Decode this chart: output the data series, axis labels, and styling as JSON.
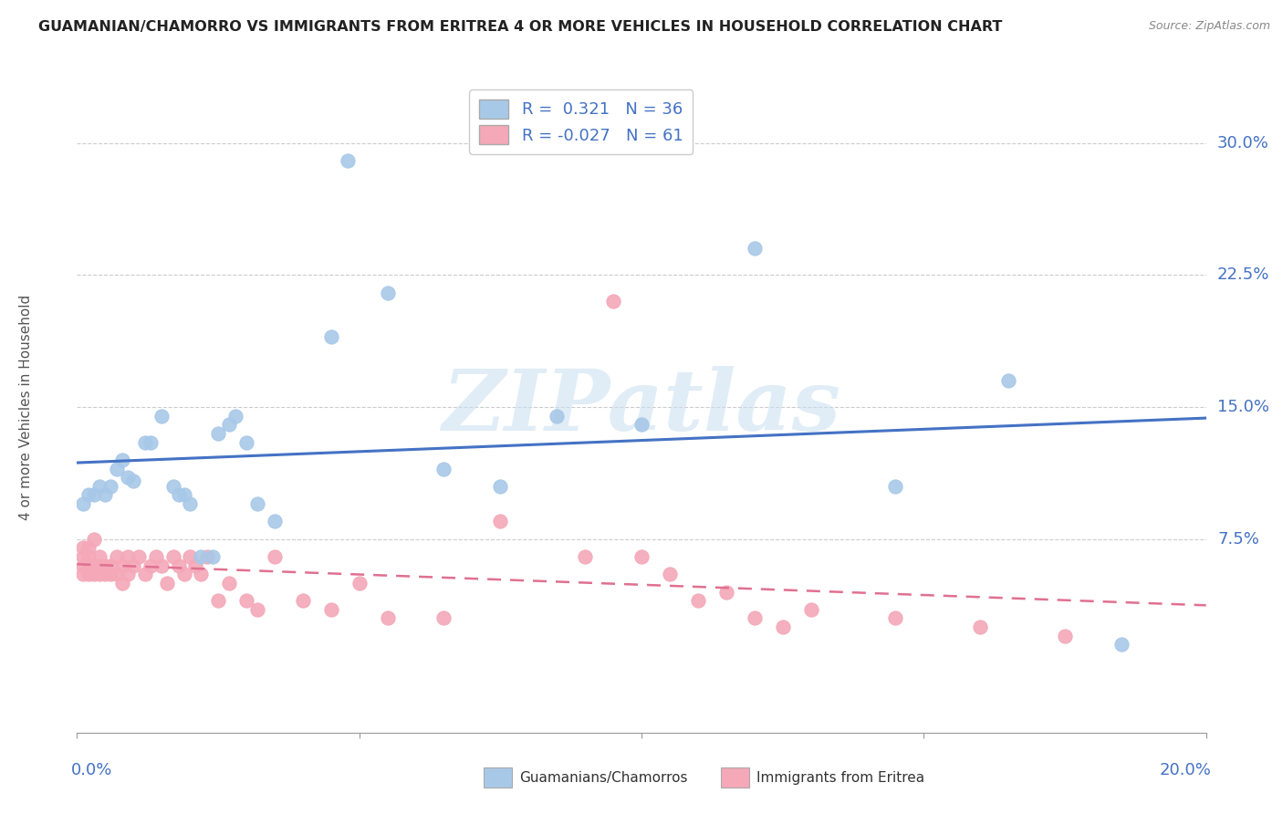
{
  "title": "GUAMANIAN/CHAMORRO VS IMMIGRANTS FROM ERITREA 4 OR MORE VEHICLES IN HOUSEHOLD CORRELATION CHART",
  "source": "Source: ZipAtlas.com",
  "ylabel": "4 or more Vehicles in Household",
  "yticks": [
    0.0,
    0.075,
    0.15,
    0.225,
    0.3
  ],
  "ytick_labels": [
    "",
    "7.5%",
    "15.0%",
    "22.5%",
    "30.0%"
  ],
  "xmin": 0.0,
  "xmax": 0.2,
  "ymin": -0.035,
  "ymax": 0.335,
  "blue_color": "#a8c8e8",
  "pink_color": "#f4a8b8",
  "blue_line_color": "#4472c4",
  "pink_line_color": "#e07090",
  "tick_label_color": "#4472c4",
  "watermark": "ZIPatlas",
  "guamanian_x": [
    0.001,
    0.002,
    0.003,
    0.004,
    0.005,
    0.006,
    0.007,
    0.008,
    0.009,
    0.01,
    0.012,
    0.013,
    0.015,
    0.017,
    0.018,
    0.019,
    0.02,
    0.022,
    0.024,
    0.025,
    0.027,
    0.028,
    0.03,
    0.032,
    0.035,
    0.045,
    0.055,
    0.065,
    0.075,
    0.085,
    0.1,
    0.12,
    0.145,
    0.165,
    0.185,
    0.048
  ],
  "guamanian_y": [
    0.095,
    0.1,
    0.1,
    0.105,
    0.1,
    0.105,
    0.115,
    0.12,
    0.11,
    0.108,
    0.13,
    0.13,
    0.145,
    0.105,
    0.1,
    0.1,
    0.095,
    0.065,
    0.065,
    0.135,
    0.14,
    0.145,
    0.13,
    0.095,
    0.085,
    0.19,
    0.215,
    0.115,
    0.105,
    0.145,
    0.14,
    0.24,
    0.105,
    0.165,
    0.015,
    0.29
  ],
  "eritrea_x": [
    0.001,
    0.001,
    0.001,
    0.001,
    0.002,
    0.002,
    0.002,
    0.002,
    0.003,
    0.003,
    0.003,
    0.004,
    0.004,
    0.004,
    0.005,
    0.005,
    0.006,
    0.006,
    0.007,
    0.007,
    0.008,
    0.008,
    0.009,
    0.009,
    0.01,
    0.011,
    0.012,
    0.013,
    0.014,
    0.015,
    0.016,
    0.017,
    0.018,
    0.019,
    0.02,
    0.021,
    0.022,
    0.023,
    0.025,
    0.027,
    0.03,
    0.032,
    0.035,
    0.04,
    0.045,
    0.05,
    0.055,
    0.065,
    0.075,
    0.09,
    0.095,
    0.1,
    0.105,
    0.11,
    0.115,
    0.12,
    0.125,
    0.13,
    0.145,
    0.16,
    0.175
  ],
  "eritrea_y": [
    0.055,
    0.06,
    0.065,
    0.07,
    0.055,
    0.06,
    0.065,
    0.07,
    0.055,
    0.06,
    0.075,
    0.055,
    0.06,
    0.065,
    0.055,
    0.06,
    0.055,
    0.06,
    0.055,
    0.065,
    0.05,
    0.06,
    0.055,
    0.065,
    0.06,
    0.065,
    0.055,
    0.06,
    0.065,
    0.06,
    0.05,
    0.065,
    0.06,
    0.055,
    0.065,
    0.06,
    0.055,
    0.065,
    0.04,
    0.05,
    0.04,
    0.035,
    0.065,
    0.04,
    0.035,
    0.05,
    0.03,
    0.03,
    0.085,
    0.065,
    0.21,
    0.065,
    0.055,
    0.04,
    0.045,
    0.03,
    0.025,
    0.035,
    0.03,
    0.025,
    0.02
  ]
}
